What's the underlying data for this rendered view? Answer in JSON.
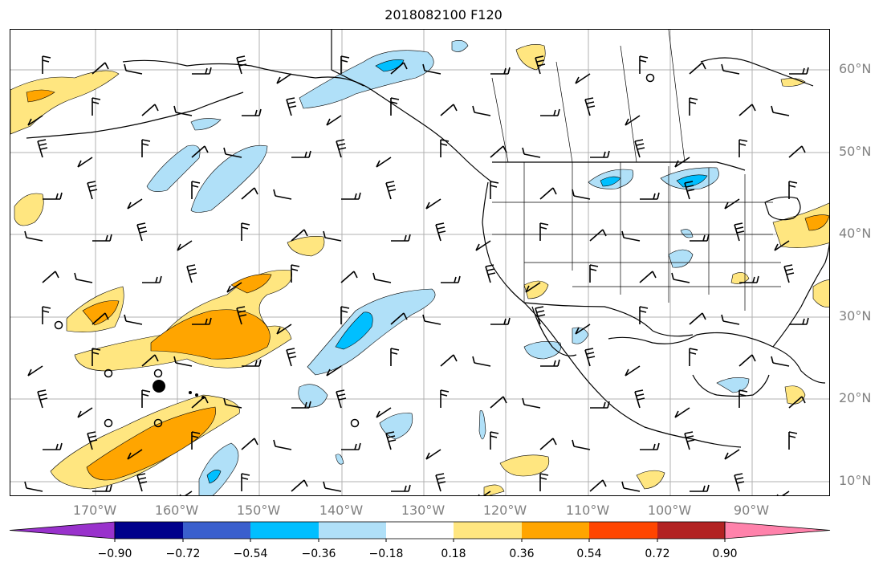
{
  "title": "2018082100 F120",
  "lat_labels": [
    "60°N",
    "50°N",
    "40°N",
    "30°N",
    "20°N",
    "10°N"
  ],
  "lon_labels": [
    "170°W",
    "160°W",
    "150°W",
    "140°W",
    "130°W",
    "120°W",
    "110°W",
    "100°W",
    "90°W"
  ],
  "colorbar": {
    "ticks": [
      "−0.90",
      "−0.72",
      "−0.54",
      "−0.36",
      "−0.18",
      "0.18",
      "0.36",
      "0.54",
      "0.72",
      "0.90"
    ],
    "colors": [
      "#9932cc",
      "#00008b",
      "#3a5fcd",
      "#00bfff",
      "#b0e0f8",
      "#ffffff",
      "#ffe680",
      "#ffa500",
      "#ff4500",
      "#b22222",
      "#ff82ab"
    ]
  },
  "fill_colors": {
    "light_blue": "#b0e0f8",
    "blue": "#00bfff",
    "light_yellow": "#ffe680",
    "orange": "#ffa500"
  }
}
